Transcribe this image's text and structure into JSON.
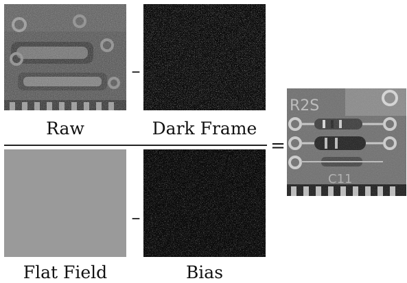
{
  "panels": {
    "raw": {
      "label": "Raw"
    },
    "dark_frame": {
      "label": "Dark Frame"
    },
    "flat_field": {
      "label": "Flat Field"
    },
    "bias": {
      "label": "Bias"
    },
    "result": {
      "label": ""
    }
  },
  "operators": {
    "minus_top": "–",
    "minus_bottom": "–",
    "equals": "="
  },
  "colors": {
    "flat_field_gray": "#9a9a9a",
    "noise_background": "#0b0b0b"
  }
}
